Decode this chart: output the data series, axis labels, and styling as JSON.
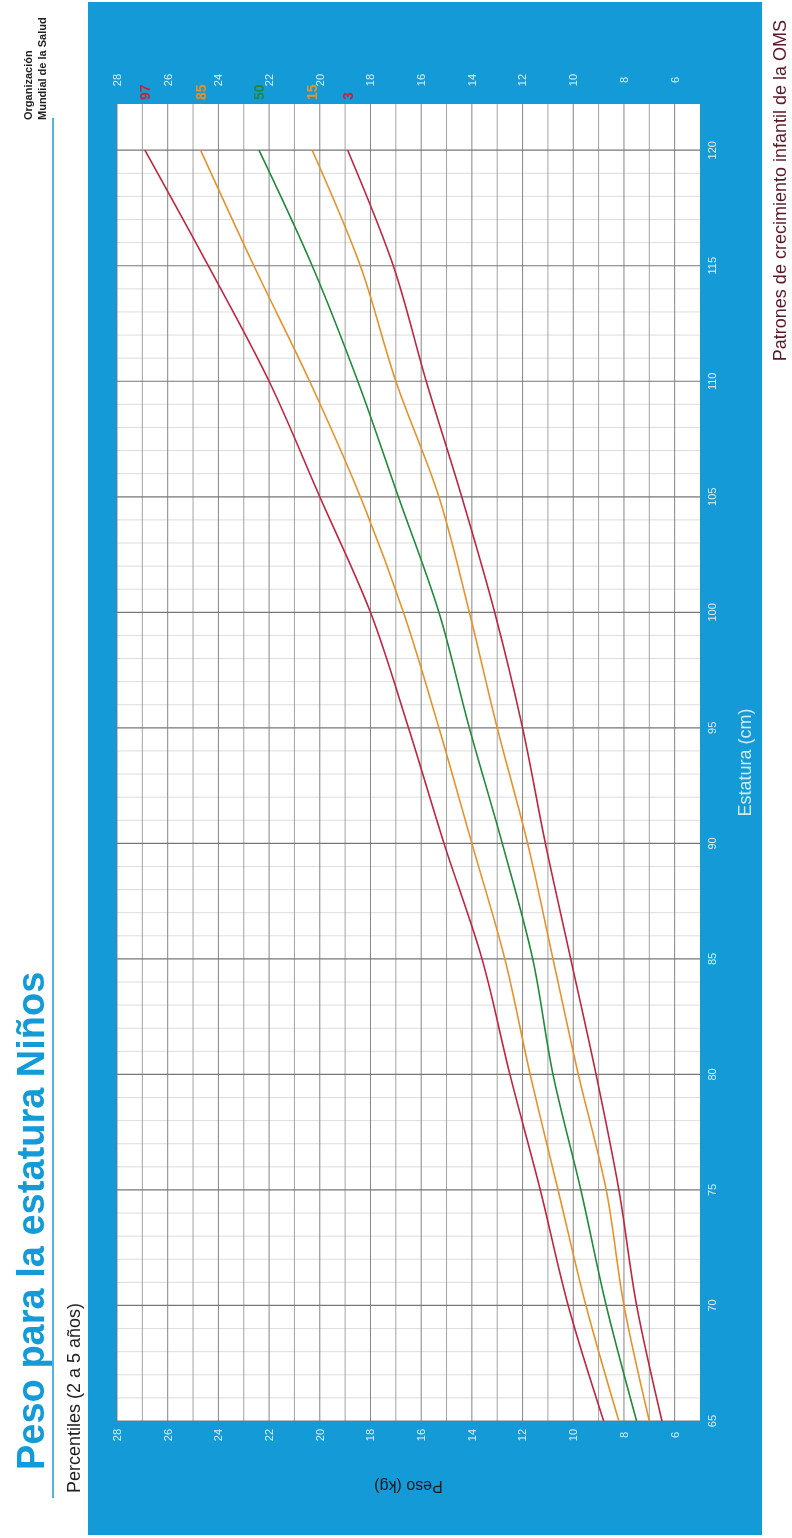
{
  "chart_data": {
    "type": "line",
    "title": "Peso para la estatura Niños",
    "subtitle": "Percentiles (2 a 5 años)",
    "xlabel": "Peso (kg)",
    "ylabel": "Estatura (cm)",
    "annotations": [
      "Patrones de crecimiento infantil de la OMS",
      "Organización\nMundial de la Salud"
    ],
    "series": [
      {
        "name": "97",
        "color": "#c0253f",
        "x": [
          8.8,
          10.2,
          11.3,
          12.5,
          13.6,
          15.1,
          16.5,
          18.0,
          20.0,
          22.0,
          24.4,
          26.9
        ],
        "values": [
          65,
          70,
          75,
          80,
          85,
          90,
          95,
          100,
          105,
          110,
          115,
          120
        ]
      },
      {
        "name": "85",
        "color": "#e8912a",
        "x": [
          8.2,
          9.5,
          10.6,
          11.7,
          12.7,
          14.0,
          15.3,
          16.7,
          18.4,
          20.4,
          22.6,
          24.7
        ],
        "values": [
          65,
          70,
          75,
          80,
          85,
          90,
          95,
          100,
          105,
          110,
          115,
          120
        ]
      },
      {
        "name": "50",
        "color": "#1f8a3a",
        "x": [
          7.5,
          8.7,
          9.7,
          10.8,
          11.6,
          12.8,
          14.1,
          15.3,
          16.9,
          18.5,
          20.3,
          22.4
        ],
        "values": [
          65,
          70,
          75,
          80,
          85,
          90,
          95,
          100,
          105,
          110,
          115,
          120
        ]
      },
      {
        "name": "15",
        "color": "#e8912a",
        "x": [
          7.0,
          8.0,
          8.7,
          9.8,
          10.8,
          11.8,
          13.0,
          14.1,
          15.3,
          17.0,
          18.4,
          20.3
        ],
        "values": [
          65,
          70,
          75,
          80,
          85,
          90,
          95,
          100,
          105,
          110,
          115,
          120
        ]
      },
      {
        "name": "3",
        "color": "#c0253f",
        "x": [
          6.5,
          7.5,
          8.2,
          9.1,
          10.1,
          11.1,
          12.0,
          13.1,
          14.4,
          15.8,
          17.1,
          18.9
        ],
        "values": [
          65,
          70,
          75,
          80,
          85,
          90,
          95,
          100,
          105,
          110,
          115,
          120
        ]
      }
    ],
    "xlim": [
      28,
      5
    ],
    "xticks": [
      28,
      26,
      24,
      22,
      20,
      18,
      16,
      14,
      12,
      10,
      8,
      6
    ],
    "x2lim": [
      28,
      5
    ],
    "x2ticks": [
      28,
      26,
      24,
      22,
      20,
      18,
      16,
      14,
      12,
      10,
      8,
      6
    ],
    "ylim": [
      65,
      122
    ],
    "yticks": [
      65,
      70,
      75,
      80,
      85,
      90,
      95,
      100,
      105,
      110,
      115,
      120
    ],
    "grid": true
  }
}
